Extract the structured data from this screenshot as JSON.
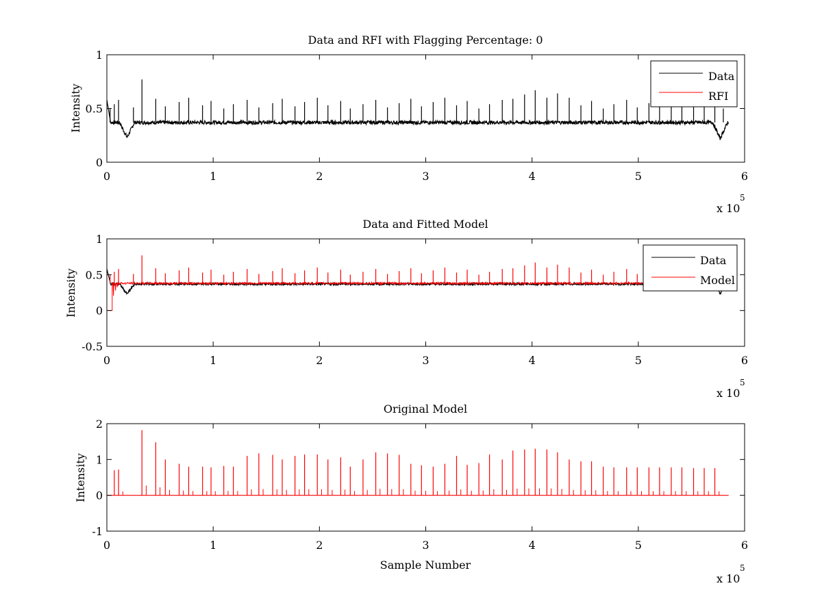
{
  "chart_data": [
    {
      "type": "line",
      "title": "Data and RFI with Flagging Percentage: 0",
      "xlabel": "",
      "ylabel": "Intensity",
      "xlim": [
        0,
        6
      ],
      "ylim": [
        0,
        1
      ],
      "x_multiplier": "x 10",
      "x_multiplier_exponent": "5",
      "xticks": [
        0,
        1,
        2,
        3,
        4,
        5,
        6
      ],
      "yticks": [
        0,
        0.5,
        1
      ],
      "legend": "top-right",
      "series": [
        {
          "name": "Data",
          "color": "#000000",
          "baseline": 0.37,
          "x_range": [
            0,
            5.85
          ],
          "dips": [
            {
              "x": 0.19,
              "y": 0.23
            },
            {
              "x": 5.77,
              "y": 0.22
            }
          ],
          "spikes": [
            0.03,
            0.07,
            0.11,
            0.25,
            0.33,
            0.46,
            0.55,
            0.68,
            0.77,
            0.9,
            0.98,
            1.1,
            1.19,
            1.32,
            1.43,
            1.56,
            1.65,
            1.77,
            1.86,
            1.98,
            2.08,
            2.2,
            2.29,
            2.41,
            2.53,
            2.64,
            2.75,
            2.86,
            2.96,
            3.07,
            3.18,
            3.29,
            3.39,
            3.5,
            3.6,
            3.72,
            3.82,
            3.93,
            4.03,
            4.14,
            4.24,
            4.35,
            4.46,
            4.56,
            4.67,
            4.77,
            4.89,
            4.99,
            5.1,
            5.2,
            5.31,
            5.41,
            5.52,
            5.62,
            5.72,
            5.8
          ]
        },
        {
          "name": "RFI",
          "color": "#ff0000"
        }
      ]
    },
    {
      "type": "line",
      "title": "Data and Fitted Model",
      "xlabel": "",
      "ylabel": "Intensity",
      "xlim": [
        0,
        6
      ],
      "ylim": [
        -0.5,
        1
      ],
      "x_multiplier": "x 10",
      "x_multiplier_exponent": "5",
      "xticks": [
        0,
        1,
        2,
        3,
        4,
        5,
        6
      ],
      "yticks": [
        -0.5,
        0,
        0.5,
        1
      ],
      "legend": "top-right",
      "series": [
        {
          "name": "Data",
          "color": "#000000",
          "baseline": 0.37,
          "x_range": [
            0,
            5.85
          ]
        },
        {
          "name": "Model",
          "color": "#ff0000",
          "baseline": 0.38,
          "x_range": [
            0,
            5.85
          ]
        }
      ]
    },
    {
      "type": "line",
      "title": "Original Model",
      "xlabel": "Sample Number",
      "ylabel": "Intensity",
      "xlim": [
        0,
        6
      ],
      "ylim": [
        -1,
        2
      ],
      "x_multiplier": "x 10",
      "x_multiplier_exponent": "5",
      "xticks": [
        0,
        1,
        2,
        3,
        4,
        5,
        6
      ],
      "yticks": [
        -1,
        0,
        1,
        2
      ],
      "legend": "none",
      "series": [
        {
          "name": "",
          "color": "#ff0000",
          "baseline": 0.0,
          "x_range": [
            0,
            5.85
          ],
          "spikes": [
            [
              0.07,
              0.7
            ],
            [
              0.11,
              0.72
            ],
            [
              0.33,
              1.82
            ],
            [
              0.46,
              1.48
            ],
            [
              0.55,
              1.0
            ],
            [
              0.68,
              0.88
            ],
            [
              0.77,
              0.8
            ],
            [
              0.9,
              0.8
            ],
            [
              0.98,
              0.78
            ],
            [
              1.1,
              0.82
            ],
            [
              1.19,
              0.8
            ],
            [
              1.32,
              1.1
            ],
            [
              1.43,
              1.17
            ],
            [
              1.56,
              1.13
            ],
            [
              1.65,
              1.0
            ],
            [
              1.77,
              1.1
            ],
            [
              1.86,
              1.14
            ],
            [
              1.98,
              1.14
            ],
            [
              2.08,
              1.0
            ],
            [
              2.2,
              1.06
            ],
            [
              2.29,
              0.8
            ],
            [
              2.41,
              1.0
            ],
            [
              2.53,
              1.2
            ],
            [
              2.64,
              1.17
            ],
            [
              2.75,
              1.13
            ],
            [
              2.86,
              0.88
            ],
            [
              2.96,
              0.84
            ],
            [
              3.07,
              0.8
            ],
            [
              3.18,
              0.88
            ],
            [
              3.29,
              1.1
            ],
            [
              3.39,
              0.85
            ],
            [
              3.5,
              0.9
            ],
            [
              3.6,
              1.14
            ],
            [
              3.72,
              1.0
            ],
            [
              3.82,
              1.25
            ],
            [
              3.93,
              1.28
            ],
            [
              4.03,
              1.3
            ],
            [
              4.14,
              1.28
            ],
            [
              4.24,
              1.2
            ],
            [
              4.35,
              1.0
            ],
            [
              4.46,
              0.95
            ],
            [
              4.56,
              0.95
            ],
            [
              4.67,
              0.8
            ],
            [
              4.77,
              0.78
            ],
            [
              4.89,
              0.78
            ],
            [
              4.99,
              0.78
            ],
            [
              5.1,
              0.78
            ],
            [
              5.2,
              0.78
            ],
            [
              5.31,
              0.78
            ],
            [
              5.41,
              0.78
            ],
            [
              5.52,
              0.76
            ],
            [
              5.62,
              0.76
            ],
            [
              5.72,
              0.76
            ]
          ]
        }
      ]
    }
  ]
}
